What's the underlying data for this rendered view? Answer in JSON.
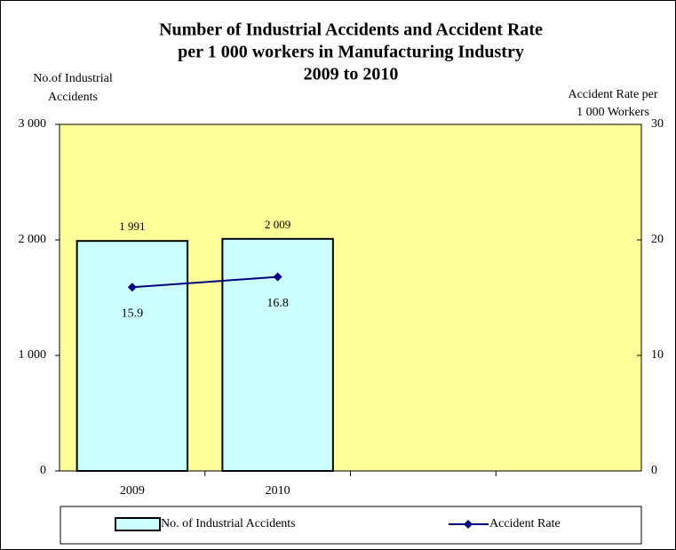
{
  "chart_data": {
    "type": "bar-line",
    "title": [
      "Number of Industrial Accidents  and Accident Rate",
      "per 1 000 workers in Manufacturing Industry",
      "2009 to 2010"
    ],
    "ylabel": [
      "No.of  Industrial",
      "Accidents"
    ],
    "y2label": [
      "Accident Rate per",
      "1 000 Workers"
    ],
    "categories": [
      "2009",
      "2010",
      null,
      null
    ],
    "series": [
      {
        "name": "No. of Industrial Accidents",
        "type": "bar",
        "color": "#ccffff",
        "values": [
          1991,
          2009,
          null,
          null
        ],
        "value_labels": [
          "1 991",
          "2 009",
          null,
          null
        ]
      },
      {
        "name": "Accident Rate",
        "type": "line",
        "axis": "y2",
        "color": "#000080",
        "values": [
          15.9,
          16.8,
          null,
          null
        ]
      }
    ],
    "ylim": [
      0,
      3000
    ],
    "yticks": [
      0,
      {
        "value": 1000,
        "label": "1 000"
      },
      {
        "value": 2000,
        "label": "2 000"
      },
      {
        "value": 3000,
        "label": "3 000"
      }
    ],
    "y2lim": [
      0,
      30
    ],
    "y2ticks": [
      0,
      10,
      20,
      30
    ],
    "plot_color": "#ffff99",
    "legend": "bottom"
  }
}
